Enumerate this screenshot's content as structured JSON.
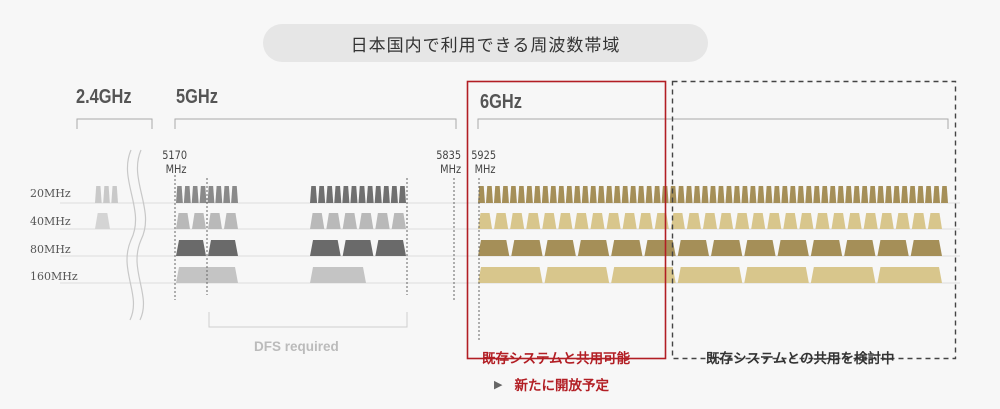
{
  "title": "日本国内で利用できる周波数帯域",
  "bands": {
    "b24": "2.4GHz",
    "b5": "5GHz",
    "b6": "6GHz"
  },
  "freq_labels": {
    "f5170": [
      "5170",
      "MHz"
    ],
    "f5835": [
      "5835",
      "MHz"
    ],
    "f5925": [
      "5925",
      "MHz"
    ]
  },
  "row_labels": [
    "20MHz",
    "40MHz",
    "80MHz",
    "160MHz"
  ],
  "dfs_label": "DFS required",
  "shared_label": "既存システムと共用可能",
  "review_label": "既存システムとの共用を検討中",
  "plan_arrow": "▶",
  "plan_label": "新たに開放予定",
  "colors": {
    "gray_dark": "#6a6a6a",
    "gray_light": "#b9b9b9",
    "gold_dark": "#a58f58",
    "gold_light": "#d8c68c",
    "accent_red": "#b21e24",
    "bracket": "#aaaaaa"
  }
}
